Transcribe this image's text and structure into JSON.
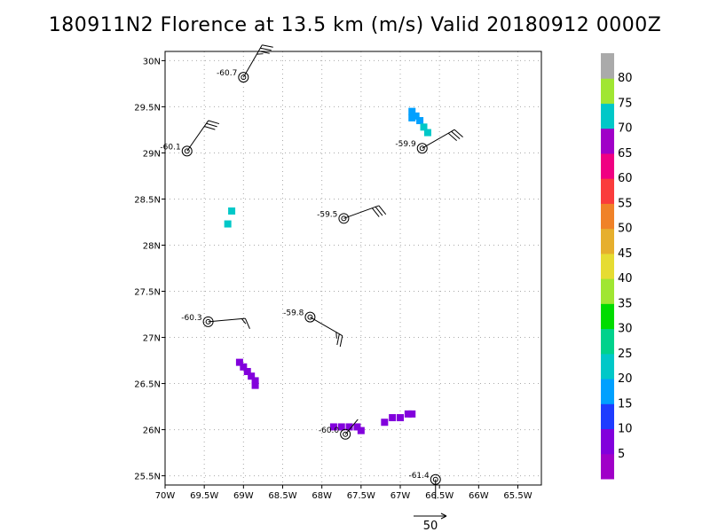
{
  "chart_data": {
    "type": "scatter",
    "title": "180911N2 Florence at 13.5 km (m/s) Valid 20180912 0000Z",
    "x_range": [
      -70.0,
      -65.2
    ],
    "y_range": [
      25.4,
      30.1
    ],
    "x_ticks": [
      {
        "value": -70.0,
        "label": "70W"
      },
      {
        "value": -69.5,
        "label": "69.5W"
      },
      {
        "value": -69.0,
        "label": "69W"
      },
      {
        "value": -68.5,
        "label": "68.5W"
      },
      {
        "value": -68.0,
        "label": "68W"
      },
      {
        "value": -67.5,
        "label": "67.5W"
      },
      {
        "value": -67.0,
        "label": "67W"
      },
      {
        "value": -66.5,
        "label": "66.5W"
      },
      {
        "value": -66.0,
        "label": "66W"
      },
      {
        "value": -65.5,
        "label": "65.5W"
      }
    ],
    "y_ticks": [
      {
        "value": 25.5,
        "label": "25.5N"
      },
      {
        "value": 26.0,
        "label": "26N"
      },
      {
        "value": 26.5,
        "label": "26.5N"
      },
      {
        "value": 27.0,
        "label": "27N"
      },
      {
        "value": 27.5,
        "label": "27.5N"
      },
      {
        "value": 28.0,
        "label": "28N"
      },
      {
        "value": 28.5,
        "label": "28.5N"
      },
      {
        "value": 29.0,
        "label": "29N"
      },
      {
        "value": 29.5,
        "label": "29.5N"
      },
      {
        "value": 30.0,
        "label": "30N"
      }
    ],
    "grid": true,
    "stations": [
      {
        "lon": -69.0,
        "lat": 29.82,
        "label": "-60.7",
        "wind_dir": 150,
        "barbs": [
          10,
          10,
          10,
          5
        ]
      },
      {
        "lon": -69.72,
        "lat": 29.02,
        "label": "-60.1",
        "wind_dir": 145,
        "barbs": [
          10,
          10,
          10
        ]
      },
      {
        "lon": -66.72,
        "lat": 29.05,
        "label": "-59.9",
        "wind_dir": 120,
        "barbs": [
          10,
          10,
          10
        ]
      },
      {
        "lon": -67.72,
        "lat": 28.29,
        "label": "-59.5",
        "wind_dir": 110,
        "barbs": [
          10,
          10,
          10
        ]
      },
      {
        "lon": -69.45,
        "lat": 27.17,
        "label": "-60.3",
        "wind_dir": 95,
        "barbs": [
          10,
          5
        ]
      },
      {
        "lon": -68.15,
        "lat": 27.22,
        "label": "-59.8",
        "wind_dir": 60,
        "barbs": [
          10,
          10,
          5
        ]
      },
      {
        "lon": -67.7,
        "lat": 25.95,
        "label": "-60.0",
        "wind_dir": 140,
        "barbs": []
      },
      {
        "lon": -66.55,
        "lat": 25.46,
        "label": "-61.4",
        "wind_dir": 0,
        "barbs": []
      }
    ],
    "speed_pixels": [
      {
        "lon": -66.85,
        "lat": 29.45,
        "v": 15
      },
      {
        "lon": -66.8,
        "lat": 29.4,
        "v": 15
      },
      {
        "lon": -66.85,
        "lat": 29.38,
        "v": 15
      },
      {
        "lon": -66.75,
        "lat": 29.35,
        "v": 15
      },
      {
        "lon": -66.7,
        "lat": 29.28,
        "v": 20
      },
      {
        "lon": -66.65,
        "lat": 29.22,
        "v": 20
      },
      {
        "lon": -69.15,
        "lat": 28.37,
        "v": 20
      },
      {
        "lon": -69.2,
        "lat": 28.23,
        "v": 20
      },
      {
        "lon": -69.05,
        "lat": 26.73,
        "v": 5
      },
      {
        "lon": -69.0,
        "lat": 26.68,
        "v": 5
      },
      {
        "lon": -68.95,
        "lat": 26.63,
        "v": 5
      },
      {
        "lon": -68.9,
        "lat": 26.58,
        "v": 5
      },
      {
        "lon": -68.85,
        "lat": 26.53,
        "v": 5
      },
      {
        "lon": -68.85,
        "lat": 26.48,
        "v": 5
      },
      {
        "lon": -67.85,
        "lat": 26.03,
        "v": 5
      },
      {
        "lon": -67.75,
        "lat": 26.03,
        "v": 5
      },
      {
        "lon": -67.65,
        "lat": 26.03,
        "v": 5
      },
      {
        "lon": -67.55,
        "lat": 26.03,
        "v": 5
      },
      {
        "lon": -67.5,
        "lat": 25.99,
        "v": 5
      },
      {
        "lon": -67.2,
        "lat": 26.08,
        "v": 5
      },
      {
        "lon": -67.1,
        "lat": 26.13,
        "v": 5
      },
      {
        "lon": -67.0,
        "lat": 26.13,
        "v": 5
      },
      {
        "lon": -66.9,
        "lat": 26.17,
        "v": 5
      },
      {
        "lon": -66.85,
        "lat": 26.17,
        "v": 5
      }
    ],
    "colorbar": {
      "labels": [
        "5",
        "10",
        "15",
        "20",
        "25",
        "30",
        "35",
        "40",
        "45",
        "50",
        "55",
        "60",
        "65",
        "70",
        "75",
        "80"
      ],
      "colors": [
        "#a000c8",
        "#8200dc",
        "#1e3cff",
        "#00a0ff",
        "#00c8c8",
        "#00d28c",
        "#00dc00",
        "#a0e632",
        "#e6dc32",
        "#e6af2d",
        "#f08228",
        "#fa3c3c",
        "#f00082",
        "#a000c8",
        "#00c8c8",
        "#a0e632",
        "#aaaaaa"
      ]
    },
    "reference_vector": {
      "label": "50"
    }
  }
}
